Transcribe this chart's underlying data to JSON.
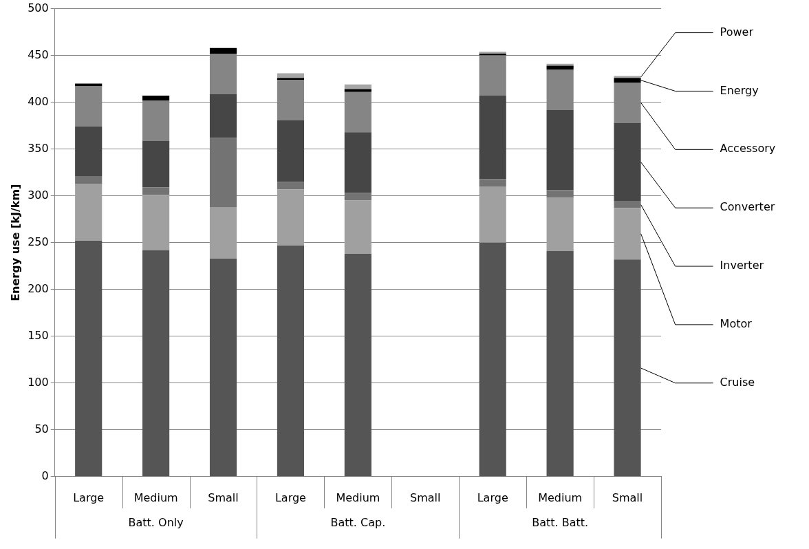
{
  "chart_data": {
    "type": "bar",
    "stacked": true,
    "ylabel": "Energy use [kJ/km]",
    "categories": [
      "Large",
      "Medium",
      "Small",
      "Large",
      "Medium",
      "Small",
      "Large",
      "Medium",
      "Small"
    ],
    "annotations": [
      "Batt. Only",
      "Batt. Cap.",
      "Batt. Batt."
    ],
    "series": [
      {
        "name": "Cruise",
        "color": "#555555",
        "values": [
          252,
          242,
          233,
          247,
          238,
          null,
          250,
          241,
          232
        ]
      },
      {
        "name": "Motor",
        "color": "#a0a0a0",
        "values": [
          61,
          59,
          55,
          60,
          57,
          null,
          60,
          57,
          55
        ]
      },
      {
        "name": "Inverter",
        "color": "#737373",
        "values": [
          8,
          8,
          74,
          8,
          8,
          null,
          8,
          8,
          7
        ]
      },
      {
        "name": "Converter",
        "color": "#464646",
        "values": [
          53,
          50,
          47,
          66,
          65,
          null,
          89,
          86,
          84
        ]
      },
      {
        "name": "Accessory",
        "color": "#858585",
        "values": [
          43,
          43,
          43,
          43,
          43,
          null,
          43,
          43,
          43
        ]
      },
      {
        "name": "Energy",
        "color": "#000000",
        "values": [
          3,
          5,
          6,
          2,
          3,
          null,
          2,
          4,
          5
        ]
      },
      {
        "name": "Power",
        "color": "#a6a6a6",
        "values": [
          0,
          0,
          0,
          5,
          5,
          null,
          2,
          2,
          2
        ]
      }
    ],
    "ylim": [
      0,
      500
    ],
    "yticks": [
      0,
      50,
      100,
      150,
      200,
      250,
      300,
      350,
      400,
      450,
      500
    ],
    "grid": "y"
  }
}
